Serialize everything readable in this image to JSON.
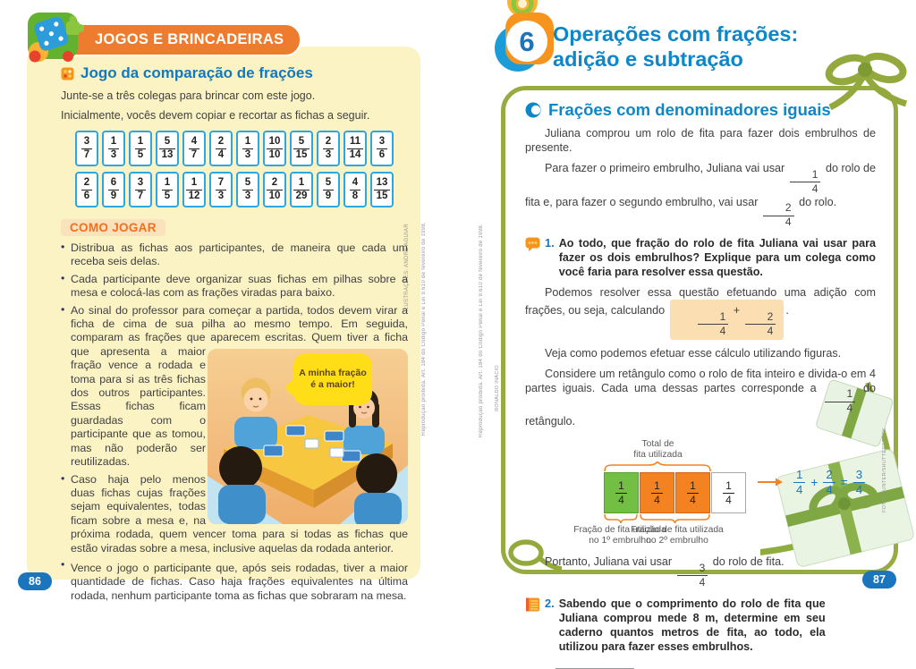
{
  "colors": {
    "banner_orange": "#EE7C2E",
    "panel_yellow": "#FBF3C3",
    "title_blue": "#1379BE",
    "chapter_blue": "#0E87C9",
    "card_border_blue": "#2EA7E0",
    "como_orange": "#F26F21",
    "highlight_peach": "#FBDFB2",
    "cell_green": "#72BF44",
    "cell_orange": "#F58220",
    "brace_orange": "#F58220",
    "ribbon_green": "#97AC40",
    "badge_blue": "#1B75BC",
    "bubble_yellow": "#FFDE17"
  },
  "left_page": {
    "banner": "JOGOS E BRINCADEIRAS",
    "title": "Jogo da comparação de frações",
    "intro": [
      "Junte-se a três colegas para brincar com este jogo.",
      "Inicialmente, vocês devem copiar e recortar as fichas a seguir."
    ],
    "card_rows": [
      [
        [
          "3",
          "7"
        ],
        [
          "1",
          "3"
        ],
        [
          "1",
          "5"
        ],
        [
          "5",
          "13"
        ],
        [
          "4",
          "7"
        ],
        [
          "2",
          "4"
        ],
        [
          "1",
          "3"
        ],
        [
          "10",
          "10"
        ],
        [
          "5",
          "15"
        ],
        [
          "2",
          "3"
        ],
        [
          "11",
          "14"
        ],
        [
          "3",
          "6"
        ]
      ],
      [
        [
          "2",
          "6"
        ],
        [
          "6",
          "9"
        ],
        [
          "3",
          "7"
        ],
        [
          "1",
          "5"
        ],
        [
          "1",
          "12"
        ],
        [
          "7",
          "3"
        ],
        [
          "5",
          "3"
        ],
        [
          "2",
          "10"
        ],
        [
          "1",
          "29"
        ],
        [
          "5",
          "9"
        ],
        [
          "4",
          "8"
        ],
        [
          "13",
          "15"
        ]
      ]
    ],
    "how_to_play_label": "COMO JOGAR",
    "bullets": [
      "Distribua as fichas aos participantes, de maneira que cada um receba seis delas.",
      "Cada participante deve organizar suas fichas em pilhas sobre a mesa e colocá-las com as frações viradas para baixo.",
      "Ao sinal do professor para começar a partida, todos devem virar a ficha de cima de sua pilha ao mesmo tempo. Em seguida, comparam as frações que aparecem escritas. Quem tiver a ficha que apresenta a maior fração vence a rodada e toma para si as três fichas dos outros participantes. Essas fichas ficam guardadas com o participante que as tomou, mas não poderão ser reutilizadas.",
      "Caso haja pelo menos duas fichas cujas frações sejam equivalentes, todas ficam sobre a mesa e, na próxima rodada, quem vencer toma para si todas as fichas que estão viradas sobre a mesa, inclusive aquelas da rodada anterior.",
      "Vence o jogo o participante que, após seis rodadas, tiver a maior quantidade de fichas. Caso haja frações equivalentes na última rodada, nenhum participante toma as fichas que sobraram na mesa."
    ],
    "speech_bubble": "A minha fração é a maior!",
    "illustration_credit": "ILUSTRAÇÕES: ANDRÉ AGUIAR",
    "legal_note": "Reprodução proibida. Art. 184 do Código Penal e Lei 9.610 de fevereiro de 1998.",
    "page_number": "86"
  },
  "right_page": {
    "chapter_number": "6",
    "chapter_title": [
      "Operações com frações:",
      "adição e subtração"
    ],
    "section_title": "Frações com denominadores iguais",
    "paragraph_1": "Juliana comprou um rolo de fita para fazer dois embrulhos de presente.",
    "paragraph_2": [
      {
        "t": "Para fazer o primeiro embrulho, Juliana vai usar "
      },
      {
        "f": [
          "1",
          "4"
        ]
      },
      {
        "t": " do rolo de fita e, para fazer o segundo embrulho, vai usar "
      },
      {
        "f": [
          "2",
          "4"
        ]
      },
      {
        "t": " do rolo."
      }
    ],
    "activity_1": {
      "number": "1.",
      "text": "Ao todo, que fração do rolo de fita Juliana vai usar para fazer os dois embrulhos? Explique para um colega como você faria para resolver essa questão."
    },
    "paragraph_3": [
      {
        "t": "Podemos resolver essa questão efetuando uma adição com frações, ou seja, calculando "
      },
      {
        "hl": [
          {
            "f": [
              "1",
              "4"
            ]
          },
          {
            "t": " + "
          },
          {
            "f": [
              "2",
              "4"
            ]
          }
        ]
      },
      {
        "t": "."
      }
    ],
    "paragraph_4": "Veja como podemos efetuar esse cálculo utilizando figuras.",
    "paragraph_5": [
      {
        "t": "Considere um retângulo como o rolo de fita inteiro e divida-o em 4 partes iguais. Cada uma dessas partes corresponde a "
      },
      {
        "f": [
          "1",
          "4"
        ]
      },
      {
        "t": " do retângulo."
      }
    ],
    "diagram": {
      "total_label": [
        "Total de",
        "fita utilizada"
      ],
      "cells": [
        {
          "fraction": [
            "1",
            "4"
          ],
          "color": "#72BF44",
          "border": "#55A12D"
        },
        {
          "fraction": [
            "1",
            "4"
          ],
          "color": "#F58220",
          "border": "#D6641C"
        },
        {
          "fraction": [
            "1",
            "4"
          ],
          "color": "#F58220",
          "border": "#D6641C"
        },
        {
          "fraction": [
            "1",
            "4"
          ],
          "color": "#FFFFFF",
          "border": "#A7A9AC"
        }
      ],
      "label_1": [
        "Fração de fita utilizada",
        "no 1º embrulho"
      ],
      "label_2": [
        "Fração de fita utilizada",
        "no 2º embrulho"
      ],
      "equation": [
        {
          "f": [
            "1",
            "4"
          ]
        },
        {
          "t": " + "
        },
        {
          "f": [
            "2",
            "4"
          ]
        },
        {
          "t": " = "
        },
        {
          "f": [
            "3",
            "4"
          ]
        }
      ]
    },
    "paragraph_6": [
      {
        "t": "Portanto, Juliana vai usar "
      },
      {
        "f": [
          "3",
          "4"
        ]
      },
      {
        "t": " do rolo de fita."
      }
    ],
    "activity_2": {
      "number": "2.",
      "text": "Sabendo que o comprimento do rolo de fita que Juliana comprou mede 8 m, determine em seu caderno quantos metros de fita, ao todo, ela utilizou para fazer esses embrulhos."
    },
    "photo_credit": "FOTO: HUNTER/SHUTTERSTOCK",
    "diagram_credit": "RONALDO INÁCIO",
    "legal_note": "Reprodução proibida. Art. 184 do Código Penal e Lei 9.610 de fevereiro de 1998.",
    "page_number": "87"
  }
}
